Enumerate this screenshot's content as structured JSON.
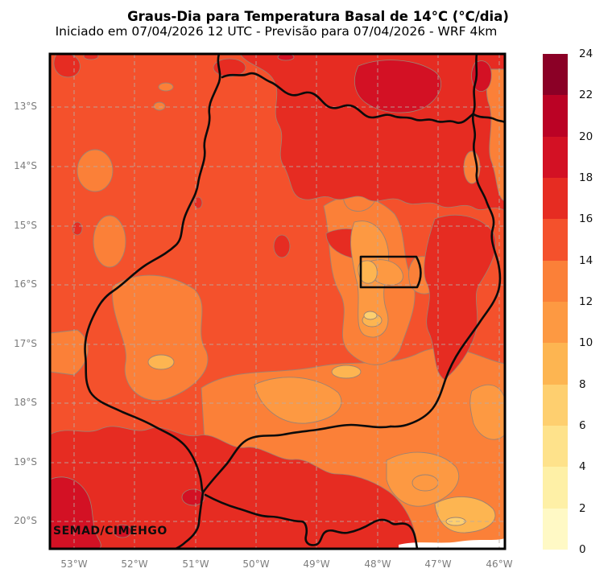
{
  "header": {
    "title": "Graus-Dia para Temperatura Basal de 14°C (°C/dia)",
    "subtitle": "Iniciado em 07/04/2026 12 UTC - Previsão para 07/04/2026 - WRF 4km"
  },
  "map": {
    "credit": "SEMAD/CIMEHGO",
    "x_ticks": [
      "53°W",
      "52°W",
      "51°W",
      "50°W",
      "49°W",
      "48°W",
      "47°W",
      "46°W"
    ],
    "y_ticks": [
      "13°S",
      "14°S",
      "15°S",
      "16°S",
      "17°S",
      "18°S",
      "19°S",
      "20°S"
    ]
  },
  "colorbar": {
    "ticks_top_to_bottom": [
      "24",
      "22",
      "20",
      "18",
      "16",
      "14",
      "12",
      "10",
      "8",
      "6",
      "4",
      "2",
      "0"
    ],
    "colors_top_to_bottom": [
      "#8B0026",
      "#BB0225",
      "#D31124",
      "#E62C22",
      "#F4512C",
      "#FB8038",
      "#FD9942",
      "#FDB551",
      "#FECF6F",
      "#FEE28B",
      "#FEF0A6",
      "#FFF9C5"
    ]
  },
  "colors": {
    "grid": "#b9aca4",
    "contour": "#9b8374",
    "border": "#0b0b0b",
    "background": "#ffffff",
    "axis_label": "#7c7c7c",
    "colorbar_label": "#111111"
  },
  "chart_data": {
    "type": "heatmap",
    "title": "Graus-Dia para Temperatura Basal de 14°C (°C/dia)",
    "subtitle": "Iniciado em 07/04/2026 12 UTC - Previsão para 07/04/2026 - WRF 4km",
    "variable": "Graus-Dia (°C/dia)",
    "value_range": [
      0,
      24
    ],
    "colorbar_step": 2,
    "lon_ticks": [
      "53°W",
      "52°W",
      "51°W",
      "50°W",
      "49°W",
      "48°W",
      "47°W",
      "46°W"
    ],
    "lat_ticks": [
      "13°S",
      "14°S",
      "15°S",
      "16°S",
      "17°S",
      "18°S",
      "19°S",
      "20°S"
    ],
    "legend_position": "right",
    "grid": true,
    "credit": "SEMAD/CIMEHGO"
  }
}
